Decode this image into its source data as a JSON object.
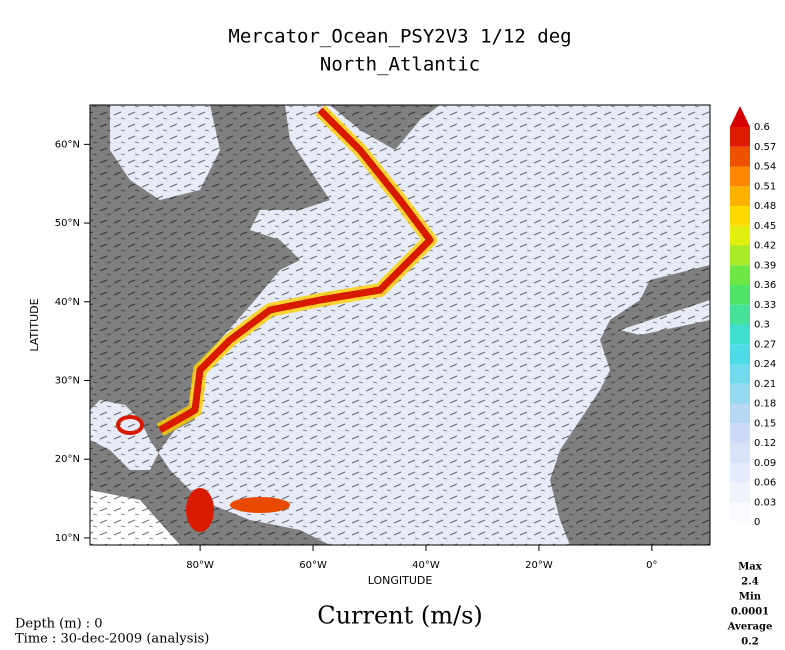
{
  "map": {
    "title": [
      "Mercator_Ocean_PSY2V3 1/12 deg",
      "North_Atlantic"
    ],
    "x_label": "LONGITUDE",
    "y_label": "LATITUDE",
    "xlim": [
      -99.5,
      10.3
    ],
    "ylim": [
      9.1,
      65
    ],
    "xticks": [
      {
        "value": -80,
        "label": "80°W"
      },
      {
        "value": -60,
        "label": "60°W"
      },
      {
        "value": -40,
        "label": "40°W"
      },
      {
        "value": -20,
        "label": "20°W"
      },
      {
        "value": 0,
        "label": "0°"
      }
    ],
    "yticks": [
      {
        "value": 10,
        "label": "10°N"
      },
      {
        "value": 20,
        "label": "20°N"
      },
      {
        "value": 30,
        "label": "30°N"
      },
      {
        "value": 40,
        "label": "40°N"
      },
      {
        "value": 50,
        "label": "50°N"
      },
      {
        "value": 60,
        "label": "60°N"
      }
    ],
    "colorbar_ticks": [
      0,
      0.03,
      0.06,
      0.09,
      0.12,
      0.15,
      0.18,
      0.21,
      0.24,
      0.27,
      0.3,
      0.33,
      0.36,
      0.39,
      0.42,
      0.45,
      0.48,
      0.51,
      0.54,
      0.57,
      0.6
    ],
    "variable": "Current (m/s)",
    "stats": [
      {
        "label": "Max",
        "value": 2.4
      },
      {
        "label": "Min",
        "value": 0.0001
      },
      {
        "label": "Average",
        "value": 0.2
      }
    ],
    "depth": "Depth (m) : 0",
    "time": "Time : 30-dec-2009 (analysis)"
  }
}
